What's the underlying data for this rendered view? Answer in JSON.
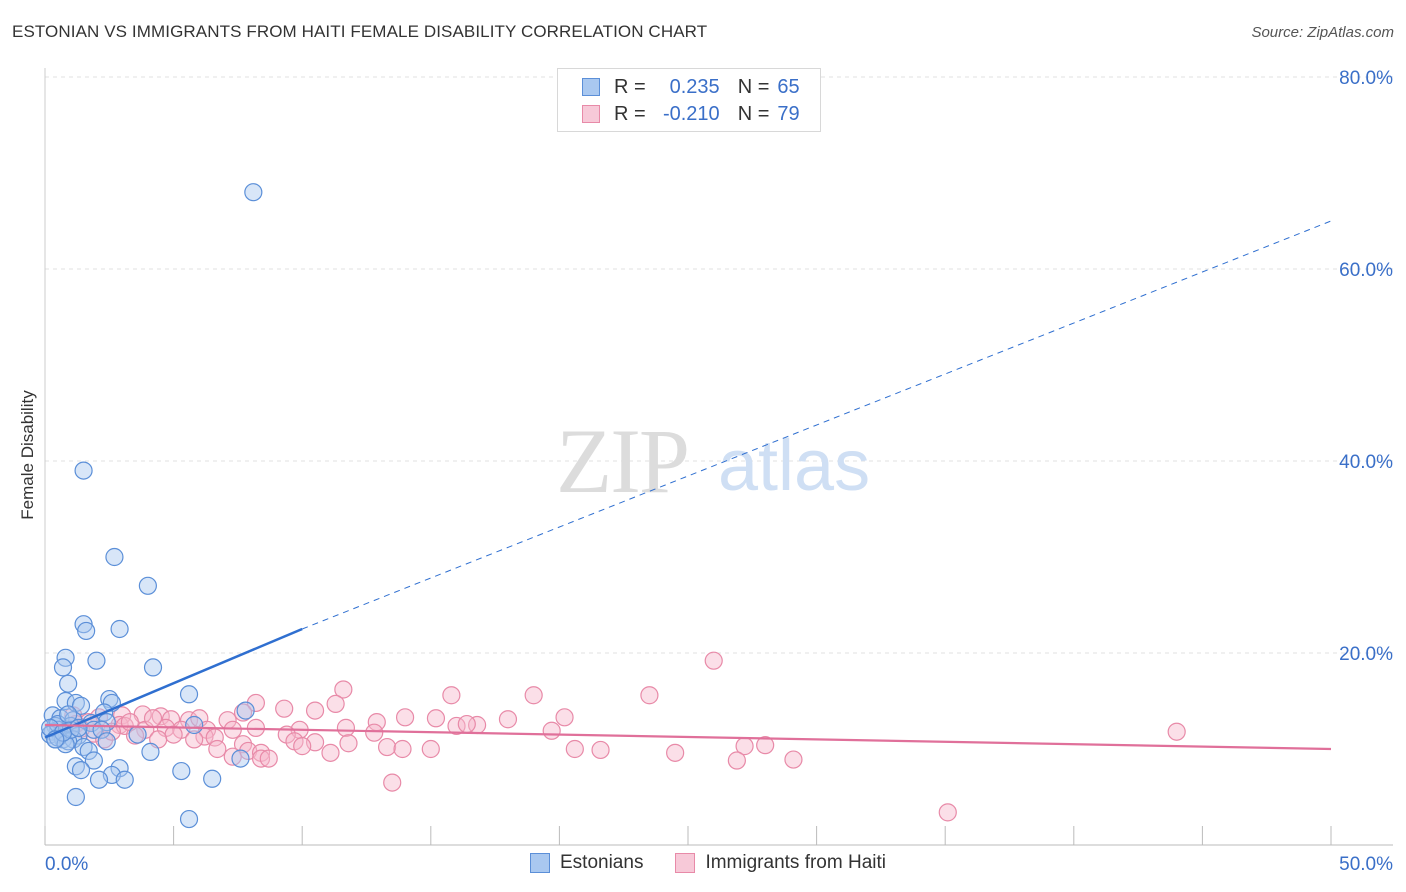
{
  "title": "ESTONIAN VS IMMIGRANTS FROM HAITI FEMALE DISABILITY CORRELATION CHART",
  "source": "Source: ZipAtlas.com",
  "watermark": {
    "zip": "ZIP",
    "atlas": "atlas"
  },
  "legend": {
    "rows": [
      {
        "r_label": "R =",
        "r_value": "0.235",
        "n_label": "N =",
        "n_value": "65"
      },
      {
        "r_label": "R =",
        "r_value": "-0.210",
        "n_label": "N =",
        "n_value": "79"
      }
    ]
  },
  "colors": {
    "blue_fill": "#a9c8f0",
    "blue_stroke": "#5b8fd8",
    "blue_line": "#2f6fd0",
    "pink_fill": "#f7b8cc",
    "pink_stroke": "#e88aa8",
    "pink_line": "#e0709a",
    "axis_text": "#3a6fc8",
    "grid": "#e2e2e2"
  },
  "chart_data": {
    "type": "scatter",
    "title": "ESTONIAN VS IMMIGRANTS FROM HAITI FEMALE DISABILITY CORRELATION CHART",
    "xlabel": "",
    "ylabel": "Female Disability",
    "xlim": [
      0,
      50
    ],
    "ylim": [
      0,
      80
    ],
    "x_tick_labels": [
      "0.0%",
      "50.0%"
    ],
    "y_ticks": [
      20,
      40,
      60,
      80
    ],
    "y_tick_labels": [
      "20.0%",
      "40.0%",
      "60.0%",
      "80.0%"
    ],
    "series": [
      {
        "name": "Estonians",
        "r": 0.235,
        "n": 65,
        "trend": {
          "x0": 0,
          "y0": 11.2,
          "x_solid_end": 10,
          "y_solid_end": 22.5,
          "x1": 50,
          "y1": 65
        },
        "points": [
          [
            8.1,
            68.0
          ],
          [
            1.5,
            39.0
          ],
          [
            2.7,
            30.0
          ],
          [
            4.0,
            27.0
          ],
          [
            1.5,
            23.0
          ],
          [
            1.6,
            22.3
          ],
          [
            2.9,
            22.5
          ],
          [
            0.8,
            19.5
          ],
          [
            2.0,
            19.2
          ],
          [
            4.2,
            18.5
          ],
          [
            0.7,
            18.5
          ],
          [
            0.9,
            16.8
          ],
          [
            5.6,
            15.7
          ],
          [
            2.5,
            15.2
          ],
          [
            0.8,
            15.0
          ],
          [
            1.2,
            14.8
          ],
          [
            2.6,
            14.8
          ],
          [
            1.4,
            14.5
          ],
          [
            7.8,
            14.0
          ],
          [
            2.3,
            13.8
          ],
          [
            0.3,
            13.5
          ],
          [
            0.6,
            13.2
          ],
          [
            1.1,
            13.0
          ],
          [
            2.4,
            12.8
          ],
          [
            1.8,
            12.7
          ],
          [
            0.4,
            12.4
          ],
          [
            1.0,
            12.4
          ],
          [
            0.5,
            12.0
          ],
          [
            1.9,
            12.0
          ],
          [
            5.8,
            12.5
          ],
          [
            2.2,
            12.0
          ],
          [
            0.3,
            11.8
          ],
          [
            0.6,
            11.5
          ],
          [
            0.2,
            11.5
          ],
          [
            1.3,
            11.4
          ],
          [
            3.6,
            11.5
          ],
          [
            0.7,
            11.0
          ],
          [
            0.4,
            11.0
          ],
          [
            1.1,
            11.0
          ],
          [
            0.9,
            10.8
          ],
          [
            2.4,
            10.8
          ],
          [
            0.5,
            11.2
          ],
          [
            0.8,
            10.5
          ],
          [
            1.5,
            10.2
          ],
          [
            1.7,
            9.8
          ],
          [
            4.1,
            9.7
          ],
          [
            7.6,
            9.0
          ],
          [
            1.9,
            8.8
          ],
          [
            1.2,
            8.2
          ],
          [
            2.9,
            8.0
          ],
          [
            1.4,
            7.8
          ],
          [
            5.3,
            7.7
          ],
          [
            2.6,
            7.3
          ],
          [
            2.1,
            6.8
          ],
          [
            6.5,
            6.9
          ],
          [
            3.1,
            6.8
          ],
          [
            1.2,
            5.0
          ],
          [
            5.6,
            2.7
          ],
          [
            0.5,
            12.6
          ],
          [
            1.0,
            12.0
          ],
          [
            0.2,
            12.2
          ],
          [
            0.7,
            11.7
          ],
          [
            1.3,
            12.2
          ],
          [
            0.9,
            13.6
          ],
          [
            0.4,
            11.0
          ]
        ]
      },
      {
        "name": "Immigrants from Haiti",
        "r": -0.21,
        "n": 79,
        "trend": {
          "x0": 0,
          "y0": 12.5,
          "x1": 50,
          "y1": 10.0
        },
        "points": [
          [
            26.0,
            19.2
          ],
          [
            11.6,
            16.2
          ],
          [
            15.8,
            15.6
          ],
          [
            19.0,
            15.6
          ],
          [
            23.5,
            15.6
          ],
          [
            8.2,
            14.8
          ],
          [
            11.3,
            14.7
          ],
          [
            9.3,
            14.2
          ],
          [
            10.5,
            14.0
          ],
          [
            7.7,
            13.8
          ],
          [
            3.0,
            13.5
          ],
          [
            3.8,
            13.6
          ],
          [
            1.1,
            13.5
          ],
          [
            14.0,
            13.3
          ],
          [
            15.2,
            13.2
          ],
          [
            20.2,
            13.3
          ],
          [
            2.1,
            13.3
          ],
          [
            4.5,
            13.4
          ],
          [
            4.9,
            13.1
          ],
          [
            5.6,
            13.0
          ],
          [
            6.0,
            13.2
          ],
          [
            18.0,
            13.1
          ],
          [
            1.7,
            12.8
          ],
          [
            7.1,
            13.0
          ],
          [
            12.9,
            12.8
          ],
          [
            1.2,
            12.6
          ],
          [
            2.9,
            12.5
          ],
          [
            3.1,
            12.4
          ],
          [
            4.7,
            12.2
          ],
          [
            8.2,
            12.2
          ],
          [
            11.7,
            12.2
          ],
          [
            16.0,
            12.4
          ],
          [
            16.8,
            12.5
          ],
          [
            3.9,
            12.0
          ],
          [
            5.3,
            12.0
          ],
          [
            6.3,
            12.0
          ],
          [
            7.3,
            12.0
          ],
          [
            9.9,
            12.0
          ],
          [
            12.8,
            11.7
          ],
          [
            19.7,
            11.9
          ],
          [
            44.0,
            11.8
          ],
          [
            1.9,
            11.6
          ],
          [
            3.5,
            11.4
          ],
          [
            5.0,
            11.5
          ],
          [
            6.2,
            11.3
          ],
          [
            9.4,
            11.5
          ],
          [
            6.6,
            11.2
          ],
          [
            2.3,
            11.0
          ],
          [
            4.4,
            11.0
          ],
          [
            5.8,
            11.0
          ],
          [
            9.7,
            10.8
          ],
          [
            10.5,
            10.7
          ],
          [
            11.8,
            10.6
          ],
          [
            7.7,
            10.5
          ],
          [
            10.0,
            10.3
          ],
          [
            13.3,
            10.2
          ],
          [
            6.7,
            10.0
          ],
          [
            7.9,
            9.8
          ],
          [
            8.4,
            9.6
          ],
          [
            11.1,
            9.6
          ],
          [
            13.9,
            10.0
          ],
          [
            15.0,
            10.0
          ],
          [
            20.6,
            10.0
          ],
          [
            21.6,
            9.9
          ],
          [
            27.2,
            10.3
          ],
          [
            28.0,
            10.4
          ],
          [
            7.3,
            9.2
          ],
          [
            8.4,
            9.0
          ],
          [
            8.7,
            9.0
          ],
          [
            26.9,
            8.8
          ],
          [
            29.1,
            8.9
          ],
          [
            13.5,
            6.5
          ],
          [
            35.1,
            3.4
          ],
          [
            2.6,
            11.8
          ],
          [
            3.3,
            12.8
          ],
          [
            4.2,
            13.2
          ],
          [
            1.4,
            12.1
          ],
          [
            16.4,
            12.6
          ],
          [
            24.5,
            9.6
          ]
        ]
      }
    ]
  }
}
